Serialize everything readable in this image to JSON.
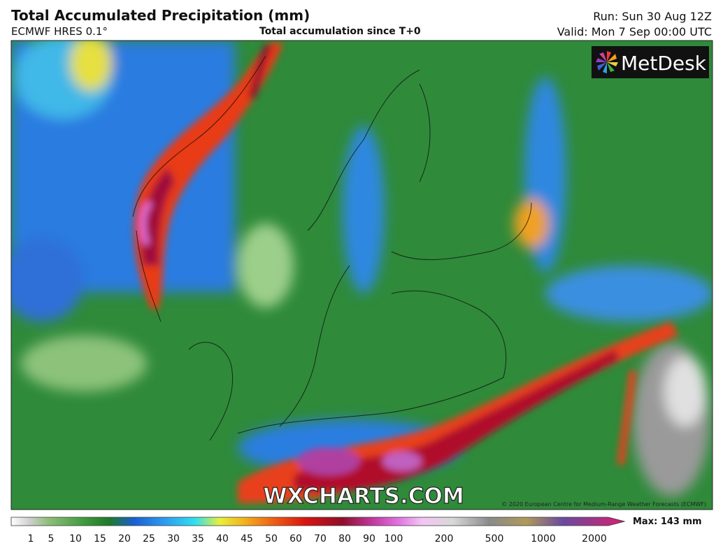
{
  "header": {
    "title": "Total Accumulated Precipitation (mm)",
    "model": "ECMWF HRES 0.1°",
    "subtitle": "Total accumulation since T+0",
    "run": "Run: Sun 30 Aug 12Z",
    "valid": "Valid: Mon 7 Sep 00:00 UTC"
  },
  "map": {
    "logo": "MetDesk",
    "watermark": "WXCHARTS.COM",
    "copyright": "© 2020 European Centre for Medium-Range Weather Forecasts (ECMWF)"
  },
  "legend": {
    "labels": [
      "1",
      "5",
      "10",
      "15",
      "20",
      "25",
      "30",
      "35",
      "40",
      "45",
      "50",
      "60",
      "70",
      "80",
      "90",
      "100",
      "200",
      "500",
      "1000",
      "2000"
    ],
    "max": "Max: 143 mm"
  }
}
